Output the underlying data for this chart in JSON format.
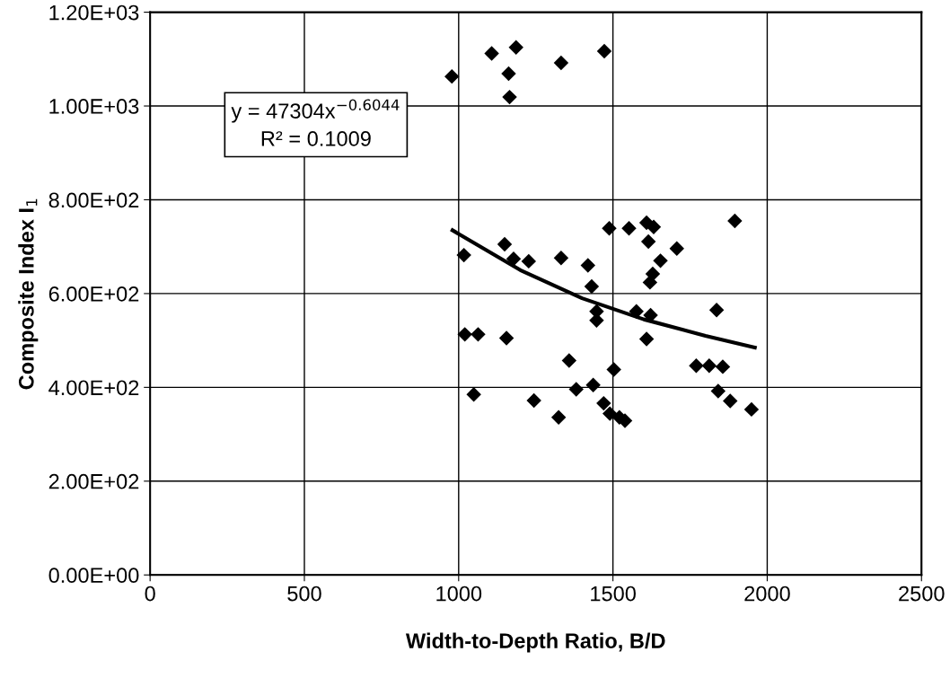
{
  "chart_data": {
    "type": "scatter",
    "xlabel": "Width-to-Depth Ratio, B/D",
    "ylabel": "Composite Index I$_{1}$",
    "xlim": [
      0,
      2500
    ],
    "xticks": [
      0,
      500,
      1000,
      1500,
      2000,
      2500
    ],
    "ylim": [
      0,
      1200
    ],
    "yticks": [
      {
        "value": 0,
        "label": "0.00E+00"
      },
      {
        "value": 200,
        "label": "2.00E+02"
      },
      {
        "value": 400,
        "label": "4.00E+02"
      },
      {
        "value": 600,
        "label": "6.00E+02"
      },
      {
        "value": 800,
        "label": "8.00E+02"
      },
      {
        "value": 1000,
        "label": "1.00E+03"
      },
      {
        "value": 1200,
        "label": "1.20E+03"
      }
    ],
    "grid": true,
    "legend": false,
    "annotations": [
      "y = 47304x$^{−0.6044}$",
      "R² = 0.1009"
    ],
    "series": [
      {
        "color": "#000000",
        "marker": "diamond",
        "x": [
          978,
          1107,
          1186,
          1162,
          1165,
          1332,
          1472,
          1017,
          1149,
          1178,
          1227,
          1332,
          1419,
          1431,
          1488,
          1552,
          1609,
          1632,
          1615,
          1654,
          1629,
          1620,
          1707,
          1895,
          1447,
          1447,
          1576,
          1622,
          1836,
          1020,
          1063,
          1155,
          1609,
          1358,
          1503,
          1770,
          1812,
          1856,
          1049,
          1244,
          1381,
          1436,
          1470,
          1490,
          1521,
          1539,
          1324,
          1841,
          1880,
          1949
        ],
        "values": [
          1063,
          1112,
          1125,
          1069,
          1019,
          1092,
          1117,
          682,
          705,
          674,
          669,
          676,
          660,
          615,
          739,
          739,
          751,
          742,
          711,
          670,
          642,
          624,
          696,
          755,
          562,
          543,
          562,
          554,
          565,
          513,
          513,
          505,
          503,
          457,
          438,
          446,
          446,
          444,
          385,
          372,
          396,
          405,
          366,
          344,
          336,
          329,
          336,
          392,
          371,
          353
        ]
      },
      {
        "type": "line",
        "color": "#000000",
        "marker": "none",
        "line_style": "solid",
        "x": [
          980,
          1200,
          1400,
          1600,
          1800,
          1960
        ],
        "values": [
          735,
          650,
          590,
          545,
          510,
          485
        ]
      }
    ]
  }
}
